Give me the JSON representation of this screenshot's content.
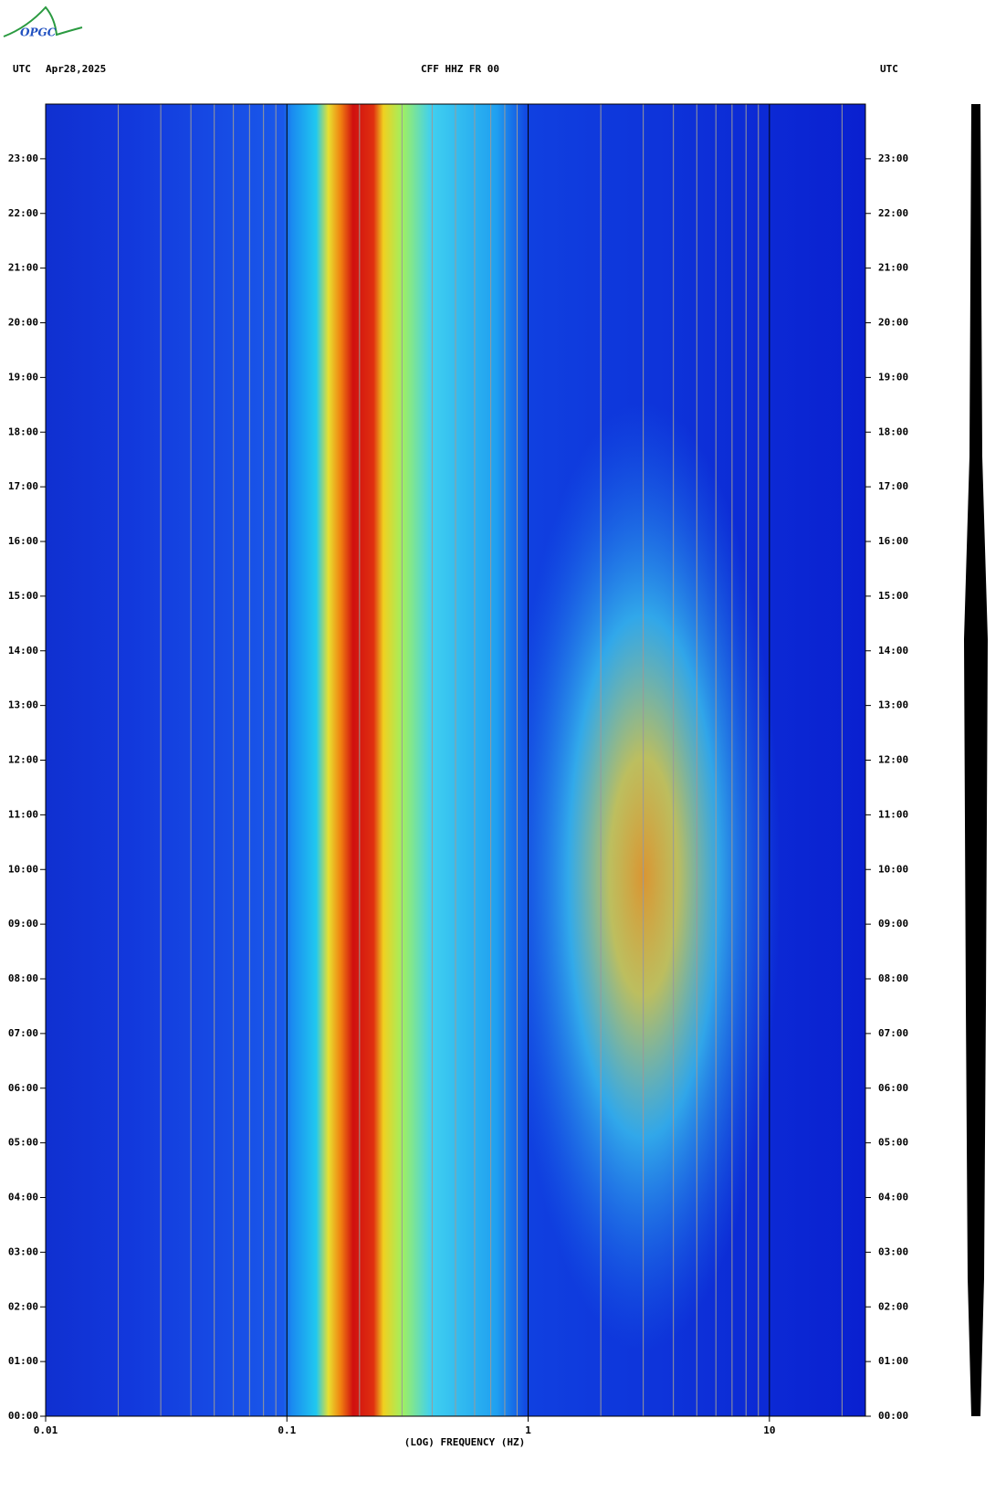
{
  "logo": "OPGC",
  "chart_data": {
    "type": "spectrogram",
    "title": "CFF HHZ FR 00",
    "left_header": "UTC",
    "date": "Apr28,2025",
    "right_header": "UTC",
    "xlabel": "(LOG) FREQUENCY (HZ)",
    "xscale": "log",
    "xlim": [
      0.01,
      25
    ],
    "xticks": [
      0.01,
      0.1,
      1,
      10
    ],
    "xminorticks": [
      0.02,
      0.03,
      0.04,
      0.05,
      0.06,
      0.07,
      0.08,
      0.09,
      0.2,
      0.3,
      0.4,
      0.5,
      0.6,
      0.7,
      0.8,
      0.9,
      2,
      3,
      4,
      5,
      6,
      7,
      8,
      9,
      20
    ],
    "ylim": [
      0,
      24
    ],
    "yticks": [
      {
        "value": 0,
        "label": "00:00"
      },
      {
        "value": 1,
        "label": "01:00"
      },
      {
        "value": 2,
        "label": "02:00"
      },
      {
        "value": 3,
        "label": "03:00"
      },
      {
        "value": 4,
        "label": "04:00"
      },
      {
        "value": 5,
        "label": "05:00"
      },
      {
        "value": 6,
        "label": "06:00"
      },
      {
        "value": 7,
        "label": "07:00"
      },
      {
        "value": 8,
        "label": "08:00"
      },
      {
        "value": 9,
        "label": "09:00"
      },
      {
        "value": 10,
        "label": "10:00"
      },
      {
        "value": 11,
        "label": "11:00"
      },
      {
        "value": 12,
        "label": "12:00"
      },
      {
        "value": 13,
        "label": "13:00"
      },
      {
        "value": 14,
        "label": "14:00"
      },
      {
        "value": 15,
        "label": "15:00"
      },
      {
        "value": 16,
        "label": "16:00"
      },
      {
        "value": 17,
        "label": "17:00"
      },
      {
        "value": 18,
        "label": "18:00"
      },
      {
        "value": 19,
        "label": "19:00"
      },
      {
        "value": 20,
        "label": "20:00"
      },
      {
        "value": 21,
        "label": "21:00"
      },
      {
        "value": 22,
        "label": "22:00"
      },
      {
        "value": 23,
        "label": "23:00"
      }
    ]
  }
}
